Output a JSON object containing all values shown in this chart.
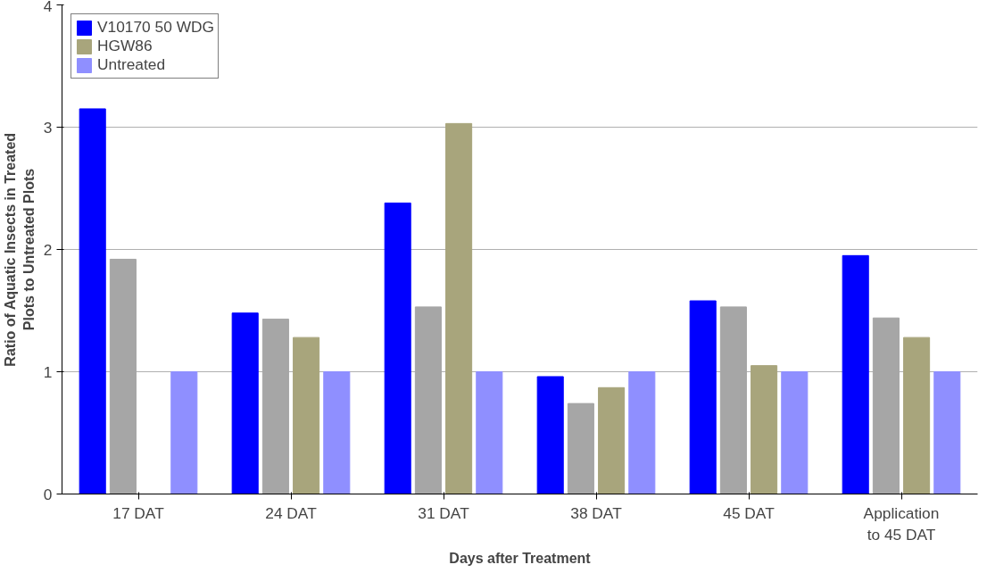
{
  "chart_data": {
    "type": "bar",
    "xlabel": "Days after Treatment",
    "ylabel": "Ratio of Aquatic Insects in Treated Plots to Untreated Plots",
    "categories": [
      "17 DAT",
      "24 DAT",
      "31 DAT",
      "38 DAT",
      "45 DAT",
      "Application to 45 DAT"
    ],
    "series": [
      {
        "name": "V10170 50 WDG",
        "color": "#0000ff",
        "values": [
          3.15,
          1.48,
          2.38,
          0.96,
          1.58,
          1.95
        ]
      },
      {
        "color": "#a6a6a6",
        "values": [
          1.92,
          1.43,
          1.53,
          0.74,
          1.53,
          1.44
        ]
      },
      {
        "name": "HGW86",
        "color": "#a8a57c",
        "values": [
          0,
          1.28,
          3.03,
          0.87,
          1.05,
          1.28
        ]
      },
      {
        "name": "Untreated",
        "color": "#8f8fff",
        "values": [
          1,
          1,
          1,
          1,
          1,
          1
        ]
      }
    ],
    "ylim": [
      0,
      4
    ],
    "yticks": [
      0,
      1,
      2,
      3,
      4
    ],
    "grid": "y",
    "legend": "top left"
  }
}
